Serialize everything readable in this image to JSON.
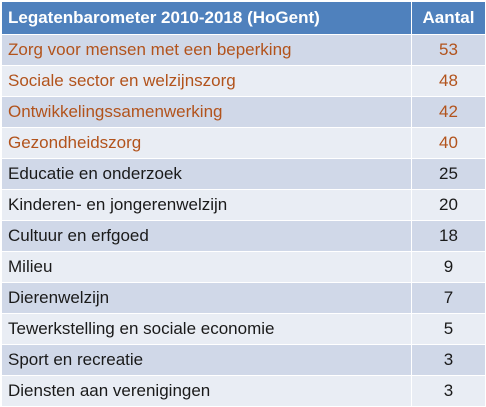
{
  "table": {
    "header": {
      "title": "Legatenbarometer 2010-2018 (HoGent)",
      "count_label": "Aantal"
    },
    "colors": {
      "header_bg": "#4f81bd",
      "row_odd_bg": "#d0d8e8",
      "row_even_bg": "#e9edf4",
      "highlight_text": "#b2531c"
    },
    "rows": [
      {
        "label": "Zorg voor mensen met een beperking",
        "value": "53",
        "highlight": true
      },
      {
        "label": "Sociale sector en welzijnszorg",
        "value": "48",
        "highlight": true
      },
      {
        "label": "Ontwikkelingssamenwerking",
        "value": "42",
        "highlight": true
      },
      {
        "label": "Gezondheidszorg",
        "value": "40",
        "highlight": true
      },
      {
        "label": "Educatie en onderzoek",
        "value": "25",
        "highlight": false
      },
      {
        "label": "Kinderen- en jongerenwelzijn",
        "value": "20",
        "highlight": false
      },
      {
        "label": "Cultuur en erfgoed",
        "value": "18",
        "highlight": false
      },
      {
        "label": "Milieu",
        "value": "9",
        "highlight": false
      },
      {
        "label": "Dierenwelzijn",
        "value": "7",
        "highlight": false
      },
      {
        "label": "Tewerkstelling en sociale economie",
        "value": "5",
        "highlight": false
      },
      {
        "label": "Sport en recreatie",
        "value": "3",
        "highlight": false
      },
      {
        "label": "Diensten aan verenigingen",
        "value": "3",
        "highlight": false
      }
    ]
  }
}
